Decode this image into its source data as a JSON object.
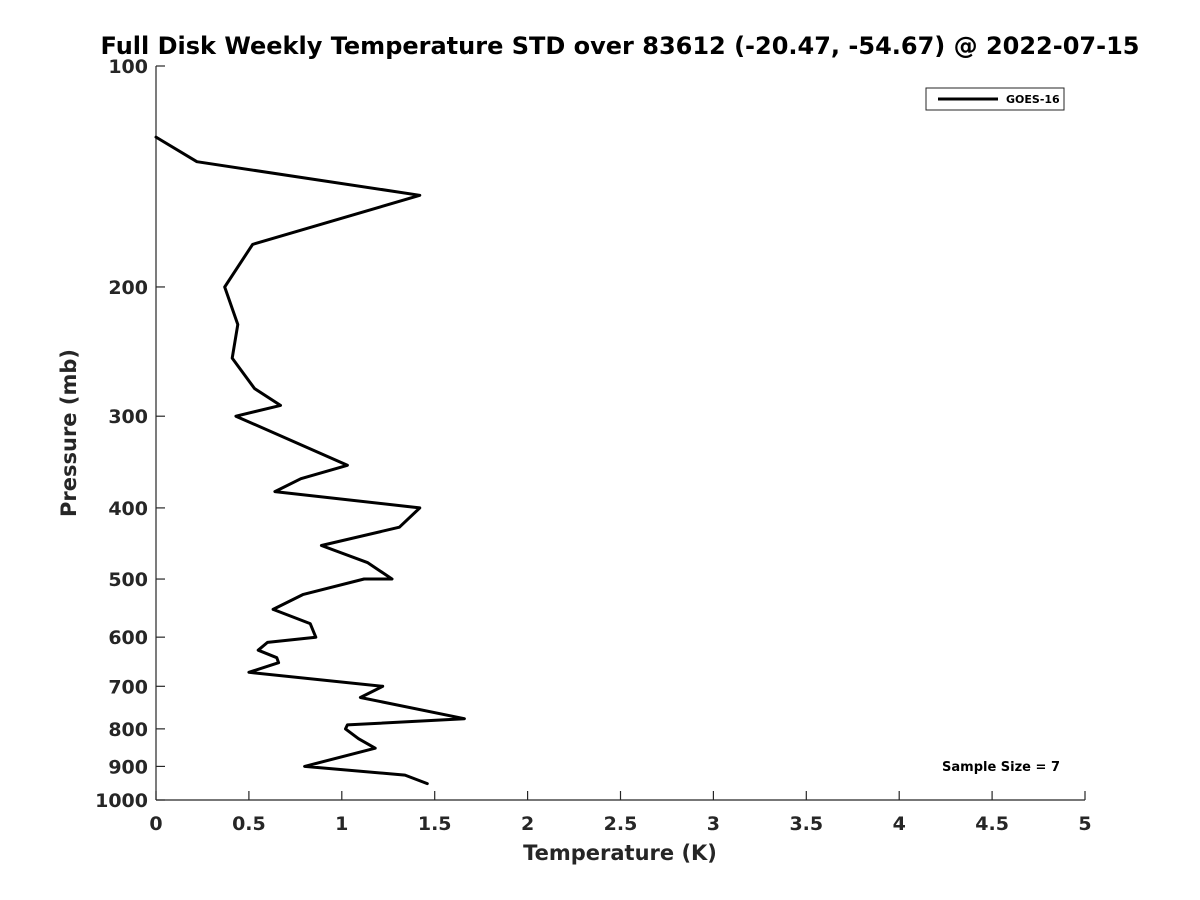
{
  "chart_data": {
    "type": "line",
    "title": "Full Disk Weekly Temperature STD over 83612 (-20.47, -54.67) @ 2022-07-15",
    "xlabel": "Temperature (K)",
    "ylabel": "Pressure (mb)",
    "xlim": [
      0,
      5
    ],
    "ylim": [
      1000,
      100
    ],
    "yscale": "log",
    "y_reversed": true,
    "grid": false,
    "x_ticks": [
      0,
      0.5,
      1,
      1.5,
      2,
      2.5,
      3,
      3.5,
      4,
      4.5,
      5
    ],
    "x_tick_labels": [
      "0",
      "0.5",
      "1",
      "1.5",
      "2",
      "2.5",
      "3",
      "3.5",
      "4",
      "4.5",
      "5"
    ],
    "y_ticks": [
      100,
      200,
      300,
      400,
      500,
      600,
      700,
      800,
      900,
      1000
    ],
    "y_tick_labels": [
      "100",
      "200",
      "300",
      "400",
      "500",
      "600",
      "700",
      "800",
      "900",
      "1000"
    ],
    "legend_position": "top-right",
    "annotation": "Sample Size = 7",
    "series": [
      {
        "name": "GOES-16",
        "color": "#000000",
        "points": [
          {
            "x": 0.0,
            "y": 125
          },
          {
            "x": 0.22,
            "y": 135
          },
          {
            "x": 1.42,
            "y": 150
          },
          {
            "x": 0.52,
            "y": 175
          },
          {
            "x": 0.37,
            "y": 200
          },
          {
            "x": 0.44,
            "y": 225
          },
          {
            "x": 0.41,
            "y": 250
          },
          {
            "x": 0.53,
            "y": 275
          },
          {
            "x": 0.67,
            "y": 290
          },
          {
            "x": 0.43,
            "y": 300
          },
          {
            "x": 1.03,
            "y": 350
          },
          {
            "x": 0.78,
            "y": 365
          },
          {
            "x": 0.64,
            "y": 380
          },
          {
            "x": 1.42,
            "y": 400
          },
          {
            "x": 1.31,
            "y": 425
          },
          {
            "x": 0.89,
            "y": 450
          },
          {
            "x": 1.14,
            "y": 475
          },
          {
            "x": 1.27,
            "y": 500
          },
          {
            "x": 1.12,
            "y": 500
          },
          {
            "x": 0.79,
            "y": 525
          },
          {
            "x": 0.63,
            "y": 550
          },
          {
            "x": 0.83,
            "y": 575
          },
          {
            "x": 0.86,
            "y": 600
          },
          {
            "x": 0.6,
            "y": 610
          },
          {
            "x": 0.55,
            "y": 625
          },
          {
            "x": 0.65,
            "y": 640
          },
          {
            "x": 0.66,
            "y": 650
          },
          {
            "x": 0.5,
            "y": 670
          },
          {
            "x": 1.22,
            "y": 700
          },
          {
            "x": 1.1,
            "y": 725
          },
          {
            "x": 1.66,
            "y": 775
          },
          {
            "x": 1.03,
            "y": 790
          },
          {
            "x": 1.02,
            "y": 800
          },
          {
            "x": 1.09,
            "y": 825
          },
          {
            "x": 1.18,
            "y": 850
          },
          {
            "x": 0.8,
            "y": 900
          },
          {
            "x": 1.34,
            "y": 925
          },
          {
            "x": 1.46,
            "y": 950
          }
        ]
      }
    ]
  }
}
